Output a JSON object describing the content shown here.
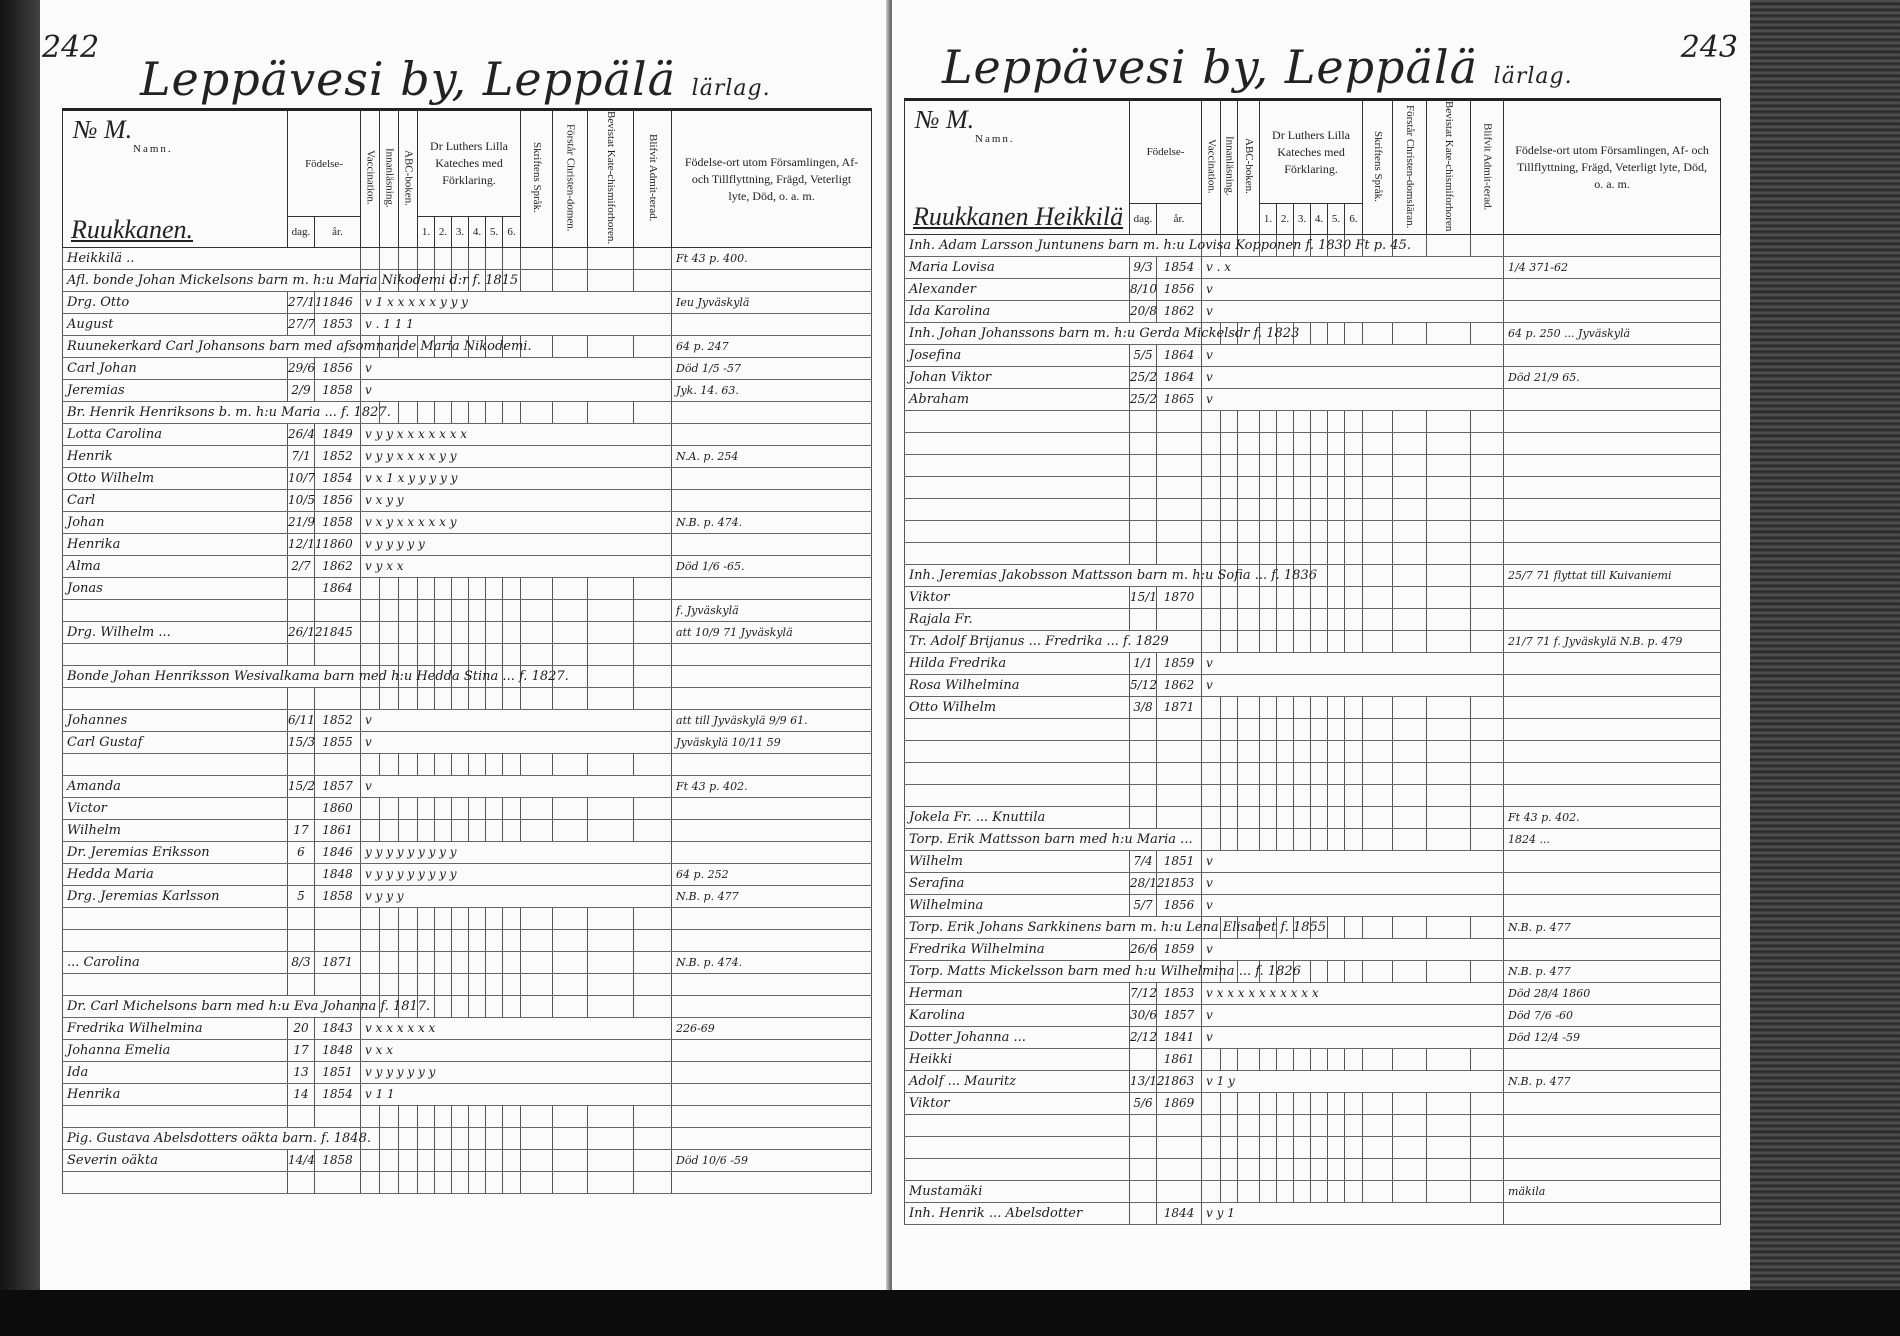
{
  "header": {
    "left_page_number": "242",
    "right_page_number": "243",
    "title_village": "Leppävesi by,",
    "title_farm": "Leppälä",
    "title_suffix": "lärlag.",
    "col_no": "№ M.",
    "col_name": "Namn.",
    "col_birth": "Födelse-",
    "col_day": "dag.",
    "col_year": "år.",
    "col_vaccination": "Vaccination.",
    "col_reading": "Innanläsning.",
    "col_abc": "ABC-boken.",
    "col_luther": "Dr Luthers Lilla Kateches med Förklaring.",
    "col_luther_parts": [
      "1.",
      "2.",
      "3.",
      "4.",
      "5.",
      "6."
    ],
    "col_scripture": "Skriftens Språk.",
    "col_christendom_left": "Förstår Christen-domen.",
    "col_christendom_right": "Förstår Christen-domsläran.",
    "col_catechism_left": "Bevistat Kate-chismiforhoren.",
    "col_catechism_right": "Bevistat Kate-chismiforhoren",
    "col_admitted": "Blifvit Admit-terad.",
    "col_remarks_left": "Födelse-ort utom Församlingen, Af- och Tillflyttning, Frägd, Veterligt lyte, Död, o. a. m.",
    "col_remarks_right": "Födelse-ort utom Församlingen, Af- och Tillflyttning, Frägd, Veterligt lyte, Död, o. a. m."
  },
  "left_page": {
    "family": "Ruukkanen.",
    "rows": [
      {
        "span": "Heikkilä ..",
        "note": "Ft 43 p. 400."
      },
      {
        "span": "Afl. bonde Johan Mickelsons barn m. h:u Maria Nikodemi d:r f. 1815"
      },
      {
        "name": "Drg. Otto",
        "day": "27/11",
        "year": "1846",
        "marks": "v  1  x x x x x y y y",
        "note": "Ieu Jyväskylä"
      },
      {
        "name": "August",
        "day": "27/7",
        "year": "1853",
        "marks": "v . 1 1 1"
      },
      {
        "span": "Ruunekerkard Carl Johansons barn med afsomnande Maria Nikodemi.",
        "note": "64 p. 247"
      },
      {
        "name": "Carl Johan",
        "day": "29/6",
        "year": "1856",
        "marks": "v",
        "note": "Död 1/5 -57"
      },
      {
        "name": "Jeremias",
        "day": "2/9",
        "year": "1858",
        "marks": "v",
        "note": "Jyk. 14. 63."
      },
      {
        "span": "Br. Henrik Henriksons b. m. h:u Maria ... f. 1827."
      },
      {
        "name": "Lotta Carolina",
        "day": "26/4",
        "year": "1849",
        "marks": "v y y x x x x x x x"
      },
      {
        "name": "Henrik",
        "day": "7/1",
        "year": "1852",
        "marks": "v y y x x x x y y",
        "note": "N.A. p. 254"
      },
      {
        "name": "Otto Wilhelm",
        "day": "10/7",
        "year": "1854",
        "marks": "v x 1 x y y y y y"
      },
      {
        "name": "Carl",
        "day": "10/5",
        "year": "1856",
        "marks": "v x y y"
      },
      {
        "name": "Johan",
        "day": "21/9",
        "year": "1858",
        "marks": "v x y x x x x x y",
        "note": "N.B. p. 474."
      },
      {
        "name": "Henrika",
        "day": "12/11",
        "year": "1860",
        "marks": "v y y y y y"
      },
      {
        "name": "Alma",
        "day": "2/7",
        "year": "1862",
        "marks": "v y x x",
        "note": "Död 1/6 -65."
      },
      {
        "name": "Jonas",
        "day": "",
        "year": "1864"
      },
      {
        "name": "",
        "day": "",
        "year": "",
        "note": "f. Jyväskylä"
      },
      {
        "name": "Drg. Wilhelm ...",
        "day": "26/12",
        "year": "1845",
        "note": "att 10/9 71 Jyväskylä"
      },
      {},
      {
        "span": "Bonde Johan Henriksson Wesivalkama barn med h:u Hedda Stina ... f. 1827."
      },
      {},
      {
        "name": "Johannes",
        "day": "6/11",
        "year": "1852",
        "marks": "v",
        "note": "att till Jyväskylä 9/9 61."
      },
      {
        "name": "Carl Gustaf",
        "day": "15/3",
        "year": "1855",
        "marks": "v",
        "note": "Jyväskylä 10/11 59"
      },
      {},
      {
        "name": "Amanda",
        "day": "15/2",
        "year": "1857",
        "marks": "v",
        "note": "Ft 43 p. 402."
      },
      {
        "name": "Victor",
        "day": "",
        "year": "1860"
      },
      {
        "name": "Wilhelm",
        "day": "17",
        "year": "1861"
      },
      {
        "name": "Dr. Jeremias Eriksson",
        "day": "6",
        "year": "1846",
        "marks": "y y y y y y y y y"
      },
      {
        "name": "Hedda Maria",
        "day": "",
        "year": "1848",
        "marks": "v y y y y y y y y",
        "note": "64 p. 252"
      },
      {
        "name": "Drg. Jeremias Karlsson",
        "day": "5",
        "year": "1858",
        "marks": "v y y y",
        "note": "N.B. p. 477"
      },
      {},
      {},
      {
        "name": "... Carolina",
        "day": "8/3",
        "year": "1871",
        "note": "N.B. p. 474."
      },
      {},
      {
        "span": "Dr. Carl Michelsons barn med h:u Eva Johanna f. 1817."
      },
      {
        "name": "Fredrika Wilhelmina",
        "day": "20",
        "year": "1843",
        "marks": "v x x x x x x",
        "note": "226-69"
      },
      {
        "name": "Johanna Emelia",
        "day": "17",
        "year": "1848",
        "marks": "v x x"
      },
      {
        "name": "Ida",
        "day": "13",
        "year": "1851",
        "marks": "v y y y y y y"
      },
      {
        "name": "Henrika",
        "day": "14",
        "year": "1854",
        "marks": "v 1 1"
      },
      {},
      {
        "span": "Pig. Gustava Abelsdotters oäkta barn. f. 1848."
      },
      {
        "name": "Severin oäkta",
        "day": "14/4",
        "year": "1858",
        "note": "Död 10/6 -59"
      }
    ]
  },
  "right_page": {
    "family": "Ruukkanen Heikkilä",
    "rows": [
      {
        "span": "Inh. Adam Larsson Juntunens barn m. h:u Lovisa Kopponen f. 1830 Ft p. 45."
      },
      {
        "name": "Maria Lovisa",
        "day": "9/3",
        "year": "1854",
        "marks": "v . x",
        "note": "1/4 371-62"
      },
      {
        "name": "Alexander",
        "day": "8/10",
        "year": "1856",
        "marks": "v"
      },
      {
        "name": "Ida Karolina",
        "day": "20/8",
        "year": "1862",
        "marks": "v"
      },
      {
        "span": "Inh. Johan Johanssons barn m. h:u Gerda Mickelsdr f. 1823",
        "note": "64 p. 250 ... Jyväskylä"
      },
      {
        "name": "Josefina",
        "day": "5/5",
        "year": "1864",
        "marks": "v"
      },
      {
        "name": "Johan Viktor",
        "day": "25/2",
        "year": "1864",
        "marks": "v",
        "note": "Död 21/9 65."
      },
      {
        "name": "Abraham",
        "day": "25/2",
        "year": "1865",
        "marks": "v"
      },
      {},
      {},
      {},
      {},
      {},
      {},
      {},
      {
        "span": "Inh. Jeremias Jakobsson Mattsson barn m. h:u Sofia ... f. 1836",
        "note": "25/7 71 flyttat till Kuivaniemi"
      },
      {
        "name": "Viktor",
        "day": "15/1",
        "year": "1870"
      },
      {
        "name": "Rajala Fr.",
        "day": "",
        "year": ""
      },
      {
        "span": "Tr. Adolf Brijanus ... Fredrika ... f. 1829",
        "note": "21/7 71 f. Jyväskylä  N.B. p. 479"
      },
      {
        "name": "Hilda Fredrika",
        "day": "1/1",
        "year": "1859",
        "marks": "v"
      },
      {
        "name": "Rosa Wilhelmina",
        "day": "5/12",
        "year": "1862",
        "marks": "v"
      },
      {
        "name": "Otto Wilhelm",
        "day": "3/8",
        "year": "1871"
      },
      {},
      {},
      {},
      {},
      {
        "name": "Jokela Fr. ... Knuttila",
        "day": "",
        "year": "",
        "note": "Ft 43 p. 402."
      },
      {
        "span": "Torp. Erik Mattsson barn med h:u Maria ...",
        "note": "1824 ..."
      },
      {
        "name": "Wilhelm",
        "day": "7/4",
        "year": "1851",
        "marks": "v"
      },
      {
        "name": "Serafina",
        "day": "28/12",
        "year": "1853",
        "marks": "v"
      },
      {
        "name": "Wilhelmina",
        "day": "5/7",
        "year": "1856",
        "marks": "v"
      },
      {
        "span": "Torp. Erik Johans Sarkkinens barn m. h:u Lena Elisabet f. 1855",
        "note": "N.B. p. 477"
      },
      {
        "name": "Fredrika Wilhelmina",
        "day": "26/6",
        "year": "1859",
        "marks": "v"
      },
      {
        "span": "Torp. Matts Mickelsson barn med h:u Wilhelmina ... f. 1826",
        "note": "N.B. p. 477"
      },
      {
        "name": "Herman",
        "day": "7/12",
        "year": "1853",
        "marks": "v x x x x x x x x x x",
        "note": "Död 28/4 1860"
      },
      {
        "name": "Karolina",
        "day": "30/6",
        "year": "1857",
        "marks": "v",
        "note": "Död 7/6 -60"
      },
      {
        "name": "Dotter Johanna ...",
        "day": "2/12",
        "year": "1841",
        "marks": "v",
        "note": "Död 12/4 -59"
      },
      {
        "name": "Heikki",
        "day": "",
        "year": "1861"
      },
      {
        "name": "Adolf ... Mauritz",
        "day": "13/12",
        "year": "1863",
        "marks": "v 1 y",
        "note": "N.B. p. 477"
      },
      {
        "name": "Viktor",
        "day": "5/6",
        "year": "1869"
      },
      {},
      {},
      {},
      {
        "name": "Mustamäki",
        "day": "",
        "year": "",
        "note": "mäkila"
      },
      {
        "name": "Inh. Henrik ... Abelsdotter",
        "day": "",
        "year": "1844",
        "marks": "v y 1"
      }
    ]
  }
}
